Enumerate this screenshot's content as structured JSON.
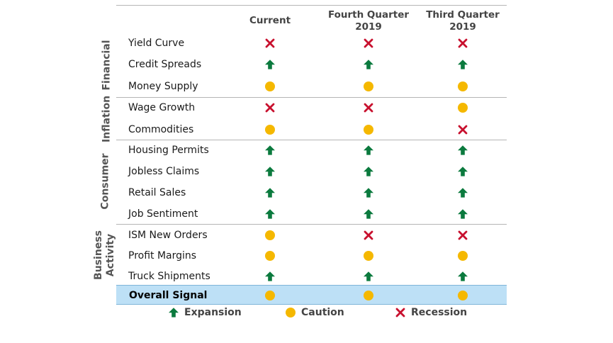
{
  "chart_data": {
    "type": "table",
    "columns": [
      "Current",
      "Fourth Quarter\n2019",
      "Third Quarter\n2019"
    ],
    "groups": [
      {
        "name": "Financial",
        "rows": [
          {
            "label": "Yield Curve",
            "signals": [
              "recession",
              "recession",
              "recession"
            ]
          },
          {
            "label": "Credit Spreads",
            "signals": [
              "expansion",
              "expansion",
              "expansion"
            ]
          },
          {
            "label": "Money Supply",
            "signals": [
              "caution",
              "caution",
              "caution"
            ]
          }
        ]
      },
      {
        "name": "Inflation",
        "rows": [
          {
            "label": "Wage Growth",
            "signals": [
              "recession",
              "recession",
              "caution"
            ]
          },
          {
            "label": "Commodities",
            "signals": [
              "caution",
              "caution",
              "recession"
            ]
          }
        ]
      },
      {
        "name": "Consumer",
        "rows": [
          {
            "label": "Housing Permits",
            "signals": [
              "expansion",
              "expansion",
              "expansion"
            ]
          },
          {
            "label": "Jobless Claims",
            "signals": [
              "expansion",
              "expansion",
              "expansion"
            ]
          },
          {
            "label": "Retail Sales",
            "signals": [
              "expansion",
              "expansion",
              "expansion"
            ]
          },
          {
            "label": "Job Sentiment",
            "signals": [
              "expansion",
              "expansion",
              "expansion"
            ]
          }
        ]
      },
      {
        "name": "Business\nActivity",
        "rows": [
          {
            "label": "ISM New Orders",
            "signals": [
              "caution",
              "recession",
              "recession"
            ]
          },
          {
            "label": "Profit Margins",
            "signals": [
              "caution",
              "caution",
              "caution"
            ]
          },
          {
            "label": "Truck Shipments",
            "signals": [
              "expansion",
              "expansion",
              "expansion"
            ]
          }
        ]
      }
    ],
    "overall": {
      "label": "Overall Signal",
      "signals": [
        "caution",
        "caution",
        "caution"
      ]
    },
    "legend": [
      {
        "key": "expansion",
        "label": "Expansion"
      },
      {
        "key": "caution",
        "label": "Caution"
      },
      {
        "key": "recession",
        "label": "Recession"
      }
    ]
  },
  "colors": {
    "expansion": "#0b7a3e",
    "caution": "#f5b800",
    "recession": "#c8102e",
    "overall_band": "#bde0f6"
  },
  "icons": {
    "expansion": "up-arrow-icon",
    "caution": "circle-icon",
    "recession": "x-mark-icon"
  }
}
